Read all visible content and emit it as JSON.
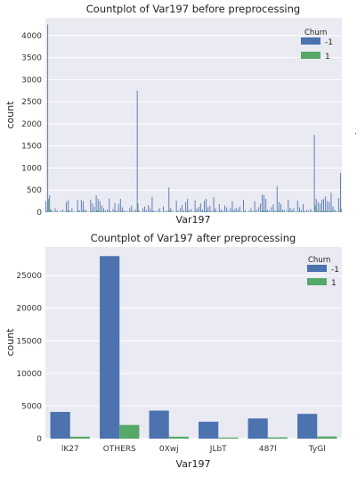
{
  "figure": {
    "stray_mark": "."
  },
  "chart_data": [
    {
      "type": "bar",
      "title": "Countplot of Var197 before preprocessing",
      "xlabel": "Var197",
      "ylabel": "count",
      "ylim": [
        0,
        4400
      ],
      "yticks": [
        0,
        500,
        1000,
        1500,
        2000,
        2500,
        3000,
        3500,
        4000
      ],
      "grid": true,
      "legend": {
        "title": "Churn",
        "placement": "top-right",
        "entries": [
          "-1",
          "1"
        ]
      },
      "colors": {
        "-1": "#4c72b0",
        "1": "#55a868",
        "background": "#eaeaf2",
        "grid": "#ffffff"
      },
      "x_tick_labels_shown": false,
      "series": [
        {
          "name": "-1",
          "values": [
            250,
            4250,
            380,
            60,
            20,
            90,
            40,
            10,
            30,
            60,
            15,
            230,
            270,
            40,
            90,
            20,
            10,
            270,
            40,
            280,
            250,
            60,
            30,
            10,
            280,
            200,
            120,
            380,
            300,
            250,
            150,
            90,
            40,
            60,
            310,
            20,
            70,
            210,
            40,
            190,
            300,
            110,
            40,
            30,
            20,
            90,
            150,
            30,
            60,
            2750,
            40,
            10,
            90,
            130,
            50,
            160,
            80,
            350,
            30,
            20,
            50,
            90,
            10,
            130,
            20,
            40,
            560,
            100,
            30,
            10,
            260,
            30,
            90,
            160,
            40,
            230,
            300,
            50,
            70,
            10,
            270,
            80,
            120,
            200,
            60,
            260,
            300,
            110,
            150,
            40,
            340,
            90,
            20,
            180,
            60,
            40,
            150,
            110,
            30,
            90,
            250,
            60,
            100,
            70,
            130,
            20,
            280,
            40,
            10,
            40,
            90,
            30,
            250,
            50,
            110,
            190,
            400,
            380,
            300,
            60,
            40,
            110,
            180,
            40,
            590,
            230,
            190,
            60,
            50,
            30,
            280,
            100,
            60,
            90,
            20,
            260,
            110,
            50,
            180,
            30,
            60,
            40,
            70,
            20,
            1750,
            300,
            230,
            190,
            280,
            300,
            360,
            250,
            230,
            440,
            130,
            60,
            20,
            320,
            890
          ]
        },
        {
          "name": "1",
          "values": [
            30,
            300,
            60,
            10,
            0,
            10,
            0,
            0,
            0,
            10,
            0,
            20,
            30,
            0,
            10,
            0,
            0,
            30,
            0,
            30,
            20,
            10,
            0,
            0,
            30,
            20,
            10,
            40,
            30,
            20,
            10,
            10,
            0,
            10,
            30,
            0,
            10,
            20,
            0,
            20,
            30,
            10,
            0,
            0,
            0,
            10,
            10,
            0,
            10,
            200,
            0,
            0,
            10,
            10,
            0,
            10,
            10,
            30,
            0,
            0,
            0,
            10,
            0,
            10,
            0,
            0,
            50,
            10,
            0,
            0,
            20,
            0,
            10,
            10,
            0,
            20,
            30,
            0,
            10,
            0,
            20,
            10,
            10,
            20,
            10,
            20,
            30,
            10,
            10,
            0,
            30,
            10,
            0,
            20,
            10,
            0,
            10,
            10,
            0,
            10,
            20,
            10,
            10,
            10,
            10,
            0,
            20,
            0,
            0,
            0,
            10,
            0,
            20,
            0,
            10,
            20,
            40,
            30,
            30,
            10,
            0,
            10,
            20,
            0,
            50,
            20,
            20,
            10,
            0,
            0,
            30,
            10,
            10,
            10,
            0,
            20,
            10,
            0,
            20,
            0,
            10,
            0,
            10,
            0,
            150,
            30,
            20,
            20,
            20,
            30,
            30,
            20,
            20,
            40,
            10,
            10,
            0,
            30,
            80
          ]
        }
      ]
    },
    {
      "type": "bar",
      "title": "Countplot of Var197 after preprocessing",
      "xlabel": "Var197",
      "ylabel": "count",
      "ylim": [
        0,
        29400
      ],
      "yticks": [
        0,
        5000,
        10000,
        15000,
        20000,
        25000
      ],
      "grid": true,
      "legend": {
        "title": "Churn",
        "placement": "top-right",
        "entries": [
          "-1",
          "1"
        ]
      },
      "colors": {
        "-1": "#4c72b0",
        "1": "#55a868",
        "background": "#eaeaf2",
        "grid": "#ffffff"
      },
      "categories": [
        "lK27",
        "OTHERS",
        "0Xwj",
        "JLbT",
        "487l",
        "TyGl"
      ],
      "series": [
        {
          "name": "-1",
          "values": [
            4100,
            28000,
            4300,
            2600,
            3100,
            3800
          ]
        },
        {
          "name": "1",
          "values": [
            300,
            2100,
            300,
            170,
            200,
            330
          ]
        }
      ]
    }
  ]
}
